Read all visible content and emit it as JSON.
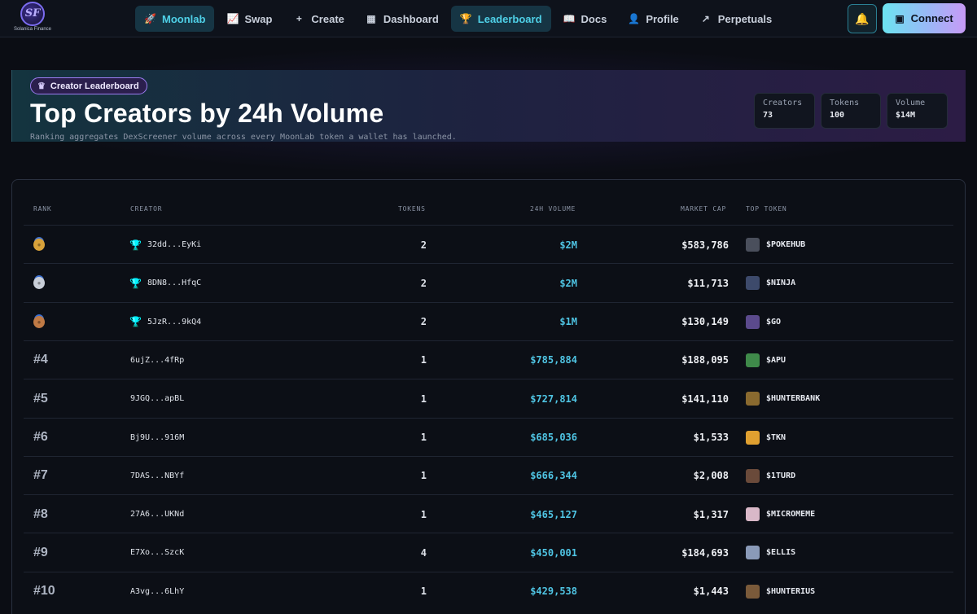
{
  "brand": {
    "logo_letters": "SF",
    "name": "Solanica Finance"
  },
  "nav": {
    "items": [
      {
        "label": "Moonlab",
        "icon": "rocket-icon",
        "glyph": "🚀",
        "active": true
      },
      {
        "label": "Swap",
        "icon": "chart-line-icon",
        "glyph": "📈",
        "active": false
      },
      {
        "label": "Create",
        "icon": "plus-icon",
        "glyph": "+",
        "active": false
      },
      {
        "label": "Dashboard",
        "icon": "grid-icon",
        "glyph": "▦",
        "active": false
      },
      {
        "label": "Leaderboard",
        "icon": "trophy-icon",
        "glyph": "🏆",
        "active": true
      },
      {
        "label": "Docs",
        "icon": "book-icon",
        "glyph": "📖",
        "active": false
      },
      {
        "label": "Profile",
        "icon": "user-icon",
        "glyph": "👤",
        "active": false
      },
      {
        "label": "Perpetuals",
        "icon": "trend-up-icon",
        "glyph": "↗",
        "active": false
      }
    ],
    "connect_label": "Connect"
  },
  "hero": {
    "badge": "Creator Leaderboard",
    "title": "Top Creators by 24h Volume",
    "subtitle": "Ranking aggregates DexScreener volume across every MoonLab token a wallet has launched.",
    "stats": [
      {
        "label": "Creators",
        "value": "73"
      },
      {
        "label": "Tokens",
        "value": "100"
      },
      {
        "label": "Volume",
        "value": "$14M"
      }
    ]
  },
  "table": {
    "headers": {
      "rank": "RANK",
      "creator": "CREATOR",
      "tokens": "TOKENS",
      "volume": "24H VOLUME",
      "mcap": "MARKET CAP",
      "top_token": "TOP TOKEN"
    },
    "rows": [
      {
        "rank": "",
        "medal": "gold",
        "creator": "32dd...EyKi",
        "trophy": true,
        "tokens": "2",
        "volume": "$2M",
        "mcap": "$583,786",
        "token": "$POKEHUB",
        "token_color": "#4a4f5c"
      },
      {
        "rank": "",
        "medal": "silver",
        "creator": "8DN8...HfqC",
        "trophy": true,
        "tokens": "2",
        "volume": "$2M",
        "mcap": "$11,713",
        "token": "$NINJA",
        "token_color": "#3d4a6b"
      },
      {
        "rank": "",
        "medal": "bronze",
        "creator": "5JzR...9kQ4",
        "trophy": true,
        "tokens": "2",
        "volume": "$1M",
        "mcap": "$130,149",
        "token": "$GO",
        "token_color": "#5b4a8c"
      },
      {
        "rank": "#4",
        "medal": "",
        "creator": "6ujZ...4fRp",
        "trophy": false,
        "tokens": "1",
        "volume": "$785,884",
        "mcap": "$188,095",
        "token": "$APU",
        "token_color": "#3f8a4a"
      },
      {
        "rank": "#5",
        "medal": "",
        "creator": "9JGQ...apBL",
        "trophy": false,
        "tokens": "1",
        "volume": "$727,814",
        "mcap": "$141,110",
        "token": "$HUNTERBANK",
        "token_color": "#8a6a2f"
      },
      {
        "rank": "#6",
        "medal": "",
        "creator": "Bj9U...916M",
        "trophy": false,
        "tokens": "1",
        "volume": "$685,036",
        "mcap": "$1,533",
        "token": "$TKN",
        "token_color": "#e0a030"
      },
      {
        "rank": "#7",
        "medal": "",
        "creator": "7DAS...NBYf",
        "trophy": false,
        "tokens": "1",
        "volume": "$666,344",
        "mcap": "$2,008",
        "token": "$1TURD",
        "token_color": "#6a4a3a"
      },
      {
        "rank": "#8",
        "medal": "",
        "creator": "27A6...UKNd",
        "trophy": false,
        "tokens": "1",
        "volume": "$465,127",
        "mcap": "$1,317",
        "token": "$MICROMEME",
        "token_color": "#d9b8c8"
      },
      {
        "rank": "#9",
        "medal": "",
        "creator": "E7Xo...SzcK",
        "trophy": false,
        "tokens": "4",
        "volume": "$450,001",
        "mcap": "$184,693",
        "token": "$ELLIS",
        "token_color": "#8a9ab8"
      },
      {
        "rank": "#10",
        "medal": "",
        "creator": "A3vg...6LhY",
        "trophy": false,
        "tokens": "1",
        "volume": "$429,538",
        "mcap": "$1,443",
        "token": "$HUNTERIUS",
        "token_color": "#7a5a3a"
      }
    ]
  },
  "colors": {
    "accent": "#4fd1e8",
    "gold": "#d9a23a",
    "silver": "#c9ced8",
    "bronze": "#c07a45"
  }
}
